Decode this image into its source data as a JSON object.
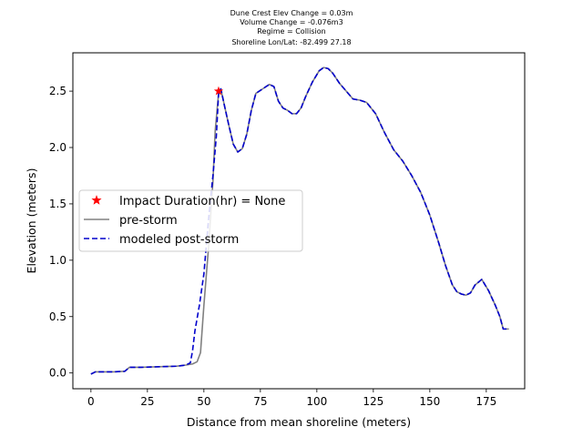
{
  "chart_data": {
    "type": "line",
    "title_lines": [
      "Dune Crest Elev Change = 0.03m",
      "Volume Change = -0.076m3",
      "Regime = Collision",
      "Shoreline Lon/Lat: -82.499 27.18"
    ],
    "xlabel": "Distance from mean shoreline (meters)",
    "ylabel": "Elevation (meters)",
    "xlim": [
      -8,
      192
    ],
    "ylim": [
      -0.14,
      2.84
    ],
    "xticks": [
      0,
      25,
      50,
      75,
      100,
      125,
      150,
      175
    ],
    "yticks": [
      0.0,
      0.5,
      1.0,
      1.5,
      2.0,
      2.5
    ],
    "legend_position": "center-left",
    "legend": [
      {
        "label": "Impact Duration(hr) = None",
        "marker": "star",
        "color": "#ff0000"
      },
      {
        "label": "pre-storm",
        "style": "solid",
        "color": "#808080"
      },
      {
        "label": "modeled post-storm",
        "style": "dashed",
        "color": "#0000cc"
      }
    ],
    "impact_point": {
      "x": 56.5,
      "y": 2.5
    },
    "series": [
      {
        "name": "pre-storm",
        "color": "#808080",
        "style": "solid",
        "points": [
          [
            0,
            -0.01
          ],
          [
            2,
            0.01
          ],
          [
            5,
            0.01
          ],
          [
            10,
            0.01
          ],
          [
            15,
            0.015
          ],
          [
            17,
            0.05
          ],
          [
            22,
            0.05
          ],
          [
            30,
            0.055
          ],
          [
            38,
            0.06
          ],
          [
            42,
            0.07
          ],
          [
            45,
            0.08
          ],
          [
            47,
            0.1
          ],
          [
            48.5,
            0.18
          ],
          [
            50,
            0.6
          ],
          [
            52,
            1.1
          ],
          [
            54,
            1.7
          ],
          [
            55,
            2.15
          ],
          [
            56.5,
            2.48
          ],
          [
            57.5,
            2.52
          ],
          [
            59,
            2.38
          ],
          [
            61,
            2.2
          ],
          [
            63,
            2.03
          ],
          [
            65,
            1.96
          ],
          [
            67,
            1.99
          ],
          [
            69,
            2.12
          ],
          [
            71,
            2.33
          ],
          [
            73,
            2.48
          ],
          [
            76,
            2.52
          ],
          [
            79,
            2.56
          ],
          [
            81,
            2.54
          ],
          [
            83,
            2.41
          ],
          [
            85,
            2.35
          ],
          [
            87,
            2.33
          ],
          [
            89,
            2.3
          ],
          [
            91,
            2.3
          ],
          [
            93,
            2.35
          ],
          [
            95,
            2.45
          ],
          [
            98,
            2.58
          ],
          [
            101,
            2.68
          ],
          [
            103,
            2.71
          ],
          [
            105,
            2.7
          ],
          [
            107,
            2.66
          ],
          [
            110,
            2.57
          ],
          [
            113,
            2.5
          ],
          [
            116,
            2.43
          ],
          [
            119,
            2.42
          ],
          [
            122,
            2.4
          ],
          [
            126,
            2.3
          ],
          [
            130,
            2.13
          ],
          [
            134,
            1.98
          ],
          [
            138,
            1.88
          ],
          [
            142,
            1.75
          ],
          [
            146,
            1.6
          ],
          [
            150,
            1.4
          ],
          [
            154,
            1.15
          ],
          [
            157,
            0.95
          ],
          [
            160,
            0.78
          ],
          [
            162,
            0.72
          ],
          [
            164,
            0.7
          ],
          [
            166,
            0.69
          ],
          [
            168,
            0.71
          ],
          [
            170,
            0.78
          ],
          [
            173,
            0.83
          ],
          [
            176,
            0.73
          ],
          [
            179,
            0.6
          ],
          [
            181,
            0.5
          ],
          [
            182.5,
            0.39
          ],
          [
            185,
            0.39
          ]
        ]
      },
      {
        "name": "modeled post-storm",
        "color": "#0000cc",
        "style": "dashed",
        "points": [
          [
            0,
            -0.01
          ],
          [
            2,
            0.01
          ],
          [
            5,
            0.01
          ],
          [
            10,
            0.01
          ],
          [
            15,
            0.015
          ],
          [
            17,
            0.05
          ],
          [
            22,
            0.05
          ],
          [
            30,
            0.055
          ],
          [
            38,
            0.06
          ],
          [
            42,
            0.07
          ],
          [
            44,
            0.09
          ],
          [
            45,
            0.2
          ],
          [
            46,
            0.37
          ],
          [
            48,
            0.6
          ],
          [
            50,
            0.88
          ],
          [
            52,
            1.35
          ],
          [
            54,
            1.75
          ],
          [
            55.5,
            2.1
          ],
          [
            56.5,
            2.48
          ],
          [
            57.5,
            2.52
          ],
          [
            59,
            2.38
          ],
          [
            61,
            2.2
          ],
          [
            63,
            2.03
          ],
          [
            65,
            1.96
          ],
          [
            67,
            1.99
          ],
          [
            69,
            2.12
          ],
          [
            71,
            2.33
          ],
          [
            73,
            2.48
          ],
          [
            76,
            2.52
          ],
          [
            79,
            2.56
          ],
          [
            81,
            2.54
          ],
          [
            83,
            2.41
          ],
          [
            85,
            2.35
          ],
          [
            87,
            2.33
          ],
          [
            89,
            2.3
          ],
          [
            91,
            2.3
          ],
          [
            93,
            2.35
          ],
          [
            95,
            2.45
          ],
          [
            98,
            2.58
          ],
          [
            101,
            2.68
          ],
          [
            103,
            2.71
          ],
          [
            105,
            2.7
          ],
          [
            107,
            2.66
          ],
          [
            110,
            2.57
          ],
          [
            113,
            2.5
          ],
          [
            116,
            2.43
          ],
          [
            119,
            2.42
          ],
          [
            122,
            2.4
          ],
          [
            126,
            2.3
          ],
          [
            130,
            2.13
          ],
          [
            134,
            1.98
          ],
          [
            138,
            1.88
          ],
          [
            142,
            1.75
          ],
          [
            146,
            1.6
          ],
          [
            150,
            1.4
          ],
          [
            154,
            1.15
          ],
          [
            157,
            0.95
          ],
          [
            160,
            0.78
          ],
          [
            162,
            0.72
          ],
          [
            164,
            0.7
          ],
          [
            166,
            0.69
          ],
          [
            168,
            0.71
          ],
          [
            170,
            0.78
          ],
          [
            173,
            0.83
          ],
          [
            176,
            0.73
          ],
          [
            179,
            0.6
          ],
          [
            181,
            0.5
          ],
          [
            182.5,
            0.39
          ],
          [
            185,
            0.39
          ]
        ]
      }
    ]
  }
}
